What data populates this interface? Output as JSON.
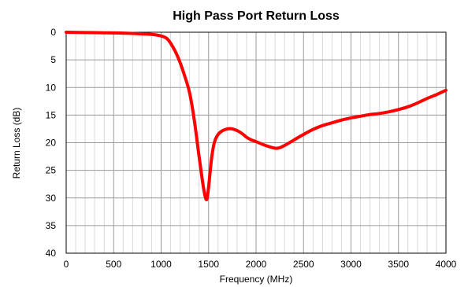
{
  "chart_data": {
    "type": "line",
    "title": "High Pass Port Return Loss",
    "xlabel": "Frequency (MHz)",
    "ylabel": "Return Loss (dB)",
    "xlim": [
      0,
      4000
    ],
    "ylim": [
      0,
      40
    ],
    "y_inverted": true,
    "grid": true,
    "x_ticks": [
      0,
      500,
      1000,
      1500,
      2000,
      2500,
      3000,
      3500,
      4000
    ],
    "y_ticks": [
      0,
      5,
      10,
      15,
      20,
      25,
      30,
      35,
      40
    ],
    "series": [
      {
        "color": "#ff0000",
        "x": [
          0,
          200,
          400,
          600,
          800,
          950,
          1050,
          1100,
          1150,
          1200,
          1250,
          1300,
          1350,
          1400,
          1450,
          1480,
          1500,
          1530,
          1560,
          1600,
          1650,
          1700,
          1750,
          1800,
          1850,
          1900,
          1950,
          2000,
          2100,
          2200,
          2250,
          2300,
          2400,
          2500,
          2600,
          2700,
          2800,
          2900,
          3000,
          3100,
          3200,
          3300,
          3400,
          3500,
          3600,
          3700,
          3800,
          3900,
          4000
        ],
        "y": [
          0.0,
          0.05,
          0.1,
          0.15,
          0.3,
          0.5,
          1.0,
          2.0,
          3.5,
          5.5,
          8.0,
          11.0,
          16.0,
          22.5,
          28.5,
          30.3,
          28.0,
          23.0,
          20.0,
          18.5,
          17.8,
          17.5,
          17.5,
          17.8,
          18.3,
          19.0,
          19.5,
          19.8,
          20.5,
          21.0,
          20.9,
          20.5,
          19.5,
          18.5,
          17.6,
          16.9,
          16.4,
          15.9,
          15.5,
          15.2,
          14.9,
          14.7,
          14.4,
          14.0,
          13.5,
          12.8,
          12.0,
          11.3,
          10.5
        ]
      }
    ]
  }
}
